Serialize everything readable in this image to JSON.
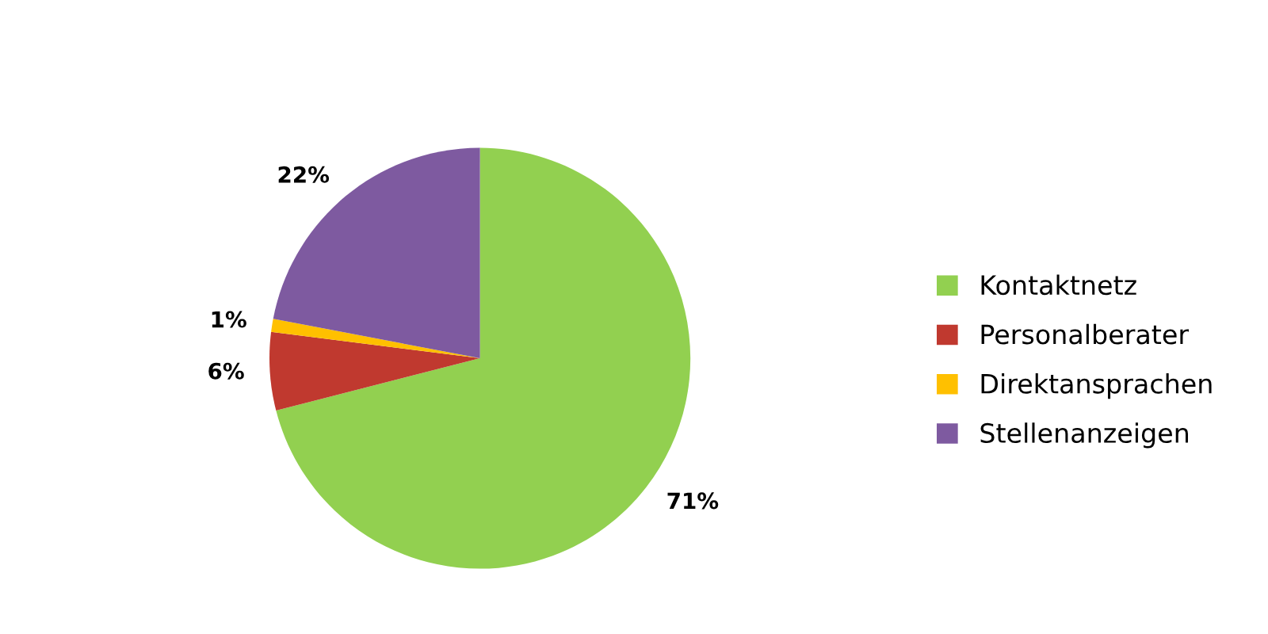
{
  "chart_data": {
    "type": "pie",
    "categories": [
      "Kontaktnetz",
      "Personalberater",
      "Direktansprachen",
      "Stellenanzeigen"
    ],
    "values": [
      71,
      6,
      1,
      22
    ],
    "colors": [
      "#92d050",
      "#c0392f",
      "#ffc000",
      "#7e5aa0"
    ],
    "value_labels": [
      "71%",
      "6%",
      "1%",
      "22%"
    ],
    "legend": "right"
  }
}
